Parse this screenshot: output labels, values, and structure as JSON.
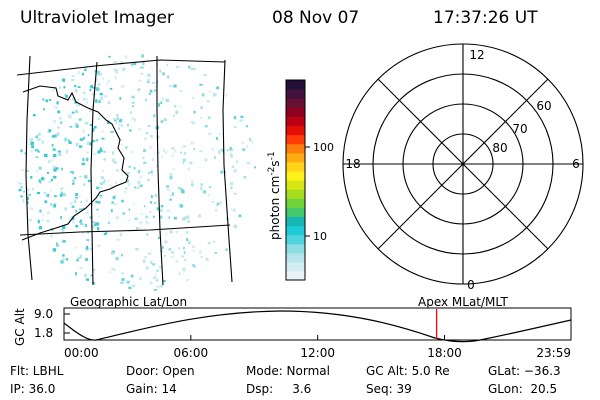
{
  "header": {
    "instrument": "Ultraviolet Imager",
    "date": "08 Nov 07",
    "time": "17:37:26 UT"
  },
  "colorbar": {
    "label_main": "photon cm",
    "label_sup1": "-2",
    "label_s": "s",
    "label_sup2": "-1",
    "ticks": [
      "100",
      "10"
    ],
    "colors": [
      "#e9f4f6",
      "#d3ecf0",
      "#b6e4ea",
      "#8fdde4",
      "#4fd3dc",
      "#1ecad6",
      "#16b7b4",
      "#44c86a",
      "#6fd43a",
      "#a6dd1e",
      "#d8e516",
      "#fff21a",
      "#ffd418",
      "#ffab12",
      "#ff7d0c",
      "#ff3b08",
      "#e31006",
      "#bb0012",
      "#8e001d",
      "#661131",
      "#41113f",
      "#221038"
    ]
  },
  "polar_plot": {
    "mlt_labels": {
      "top": "12",
      "left": "18",
      "right": "6",
      "bottom": "0"
    },
    "lat_labels": [
      "80",
      "70",
      "60"
    ]
  },
  "timeline": {
    "left_title": "Geographic Lat/Lon",
    "right_title": "Apex MLat/MLT",
    "y_label": "GC Alt",
    "y_ticks": [
      "9.0",
      "1.8"
    ],
    "x_ticks": [
      "00:00",
      "06:00",
      "12:00",
      "18:00",
      "23:59"
    ],
    "marker_time": "17:37:26",
    "marker_color": "#ff0000"
  },
  "info": {
    "flt": "Flt: LBHL",
    "ip": "IP: 36.0",
    "door": "Door: Open",
    "gain": "Gain: 14",
    "mode": "Mode: Normal",
    "dsp": "Dsp:     3.6",
    "gc_alt": "GC Alt: 5.0 Re",
    "seq": "Seq: 39",
    "glat": "GLat: −36.3",
    "glon": "GLon:  20.5"
  }
}
